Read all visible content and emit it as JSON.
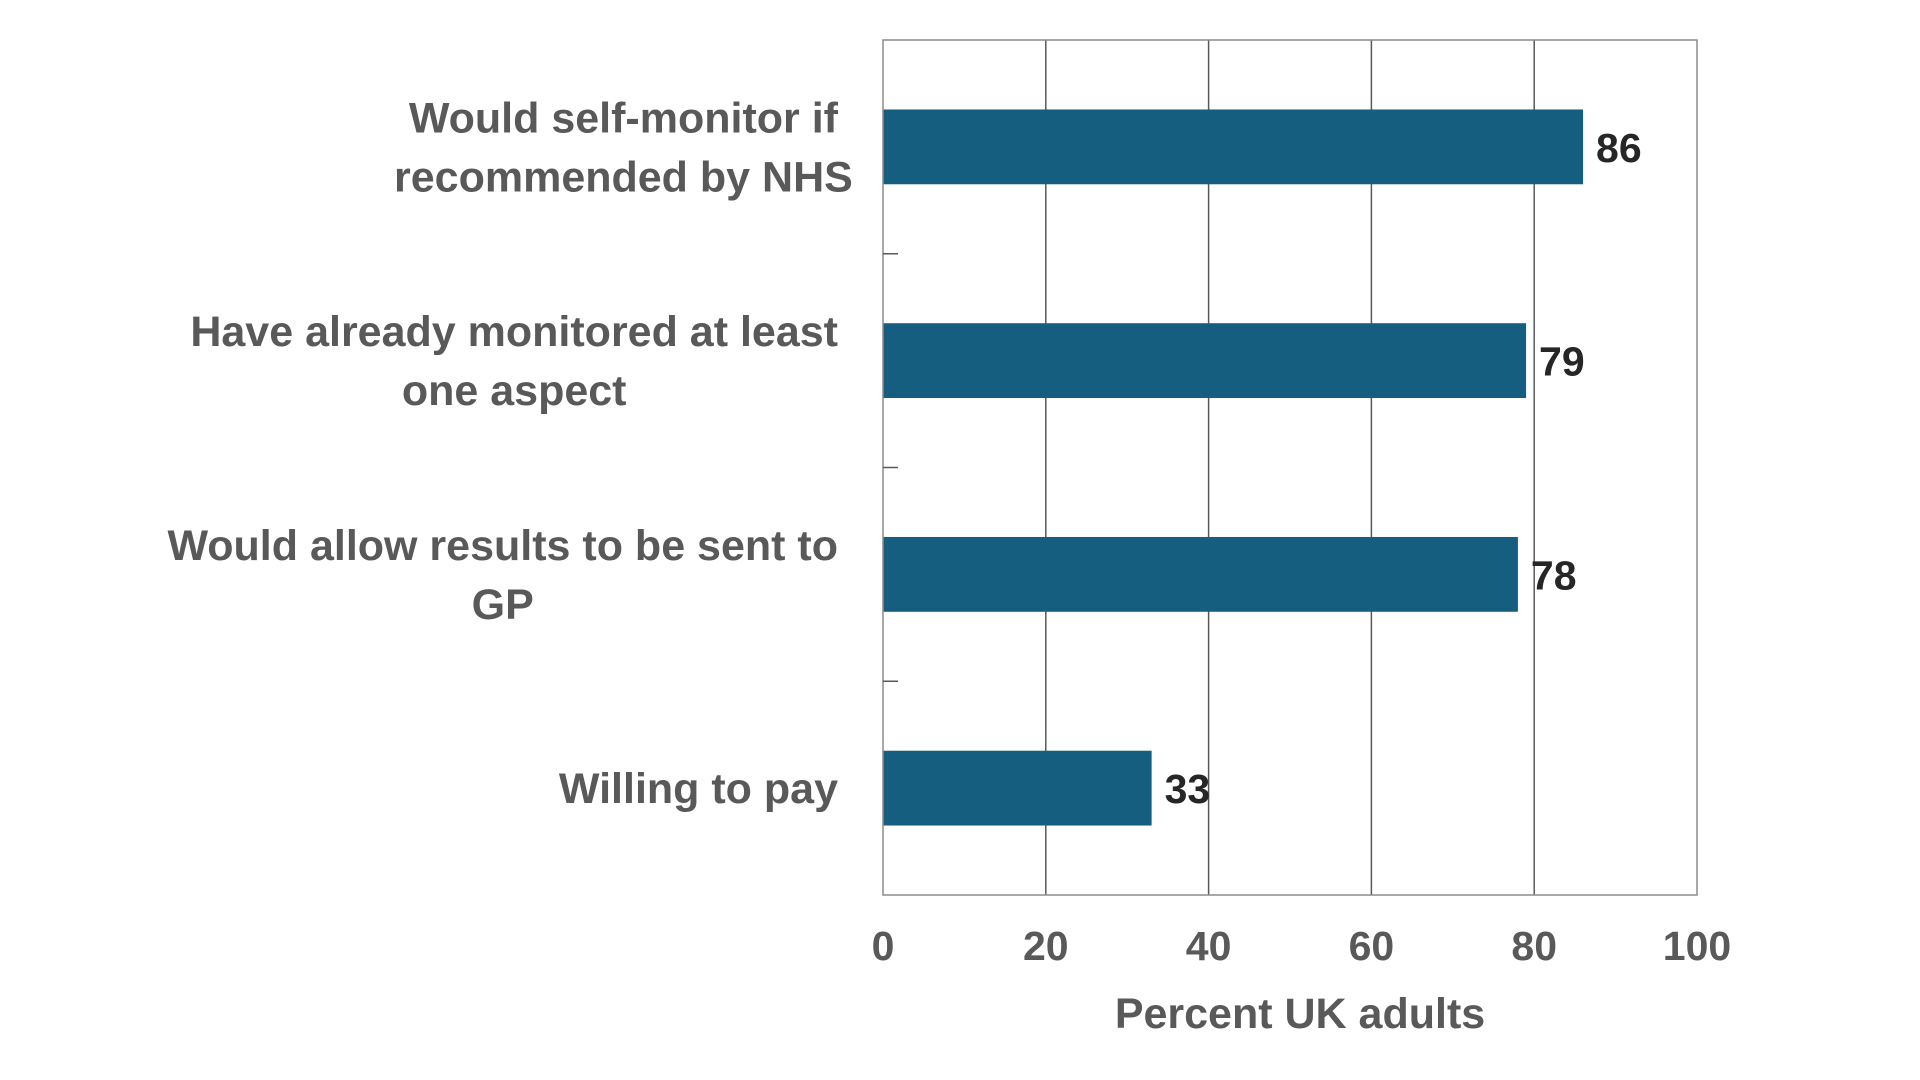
{
  "chart_data": {
    "type": "bar",
    "orientation": "horizontal",
    "categories": [
      [
        "Would self-monitor if",
        "recommended by NHS"
      ],
      [
        "Have already monitored at least",
        "one aspect"
      ],
      [
        "Would allow results to be sent to",
        "GP"
      ],
      [
        "Willing to pay"
      ]
    ],
    "values": [
      86,
      79,
      78,
      33
    ],
    "value_labels": [
      "86",
      "79",
      "78",
      "33"
    ],
    "xlabel": "Percent UK adults",
    "xlim": [
      0,
      100
    ],
    "xticks": [
      0,
      20,
      40,
      60,
      80,
      100
    ],
    "xtick_labels": [
      "0",
      "20",
      "40",
      "60",
      "80",
      "100"
    ],
    "grid": "vertical",
    "legend": "none",
    "colors": {
      "bar": "#165e80",
      "grid": "#595959",
      "frame": "#8c8c8c"
    }
  }
}
